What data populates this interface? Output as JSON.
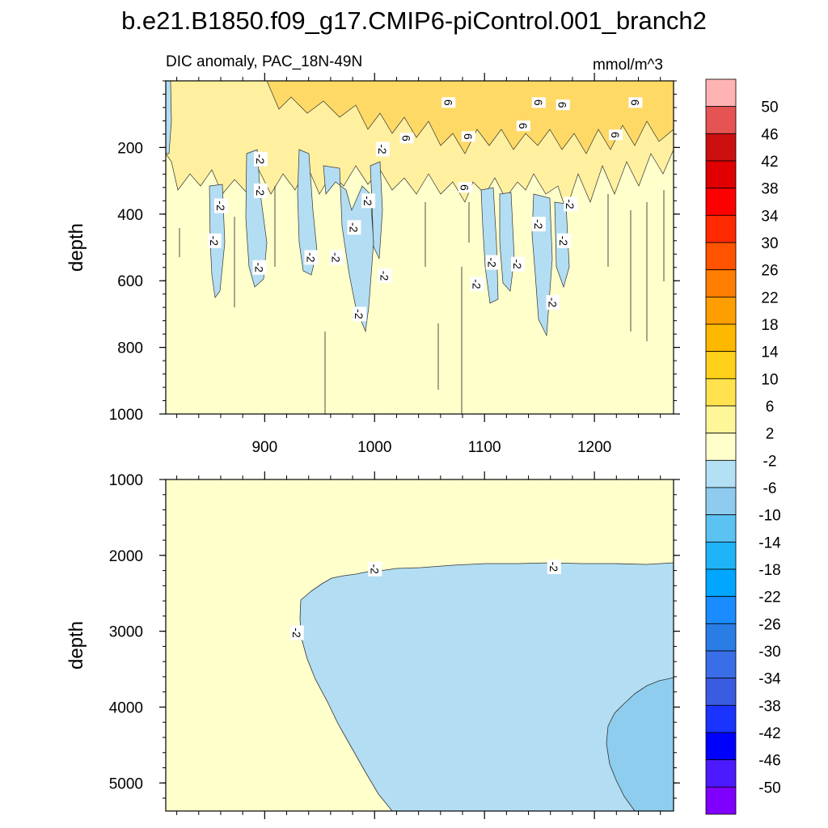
{
  "figure": {
    "title": "b.e21.B1850.f09_g17.CMIP6-piControl.001_branch2"
  },
  "chart_data": [
    {
      "type": "heatmap",
      "panel": "upper",
      "title": "DIC anomaly, PAC_18N-49N",
      "units": "mmol/m^3",
      "xlabel": "",
      "ylabel": "depth",
      "xlim": [
        810,
        1272
      ],
      "ylim": [
        1000,
        0
      ],
      "xticks": [
        900,
        1000,
        1100,
        1200
      ],
      "xtick_labels": [
        "900",
        "1000",
        "1100",
        "1200"
      ],
      "yticks": [
        200,
        400,
        600,
        800,
        1000
      ],
      "ytick_labels": [
        "200",
        "400",
        "600",
        "800",
        "1000"
      ],
      "contour_labels": [
        {
          "text": "6",
          "x": 1067,
          "y": 65
        },
        {
          "text": "6",
          "x": 1149,
          "y": 65
        },
        {
          "text": "6",
          "x": 1171,
          "y": 72
        },
        {
          "text": "6",
          "x": 1237,
          "y": 65
        },
        {
          "text": "6",
          "x": 1029,
          "y": 172
        },
        {
          "text": "6",
          "x": 1085,
          "y": 167
        },
        {
          "text": "6",
          "x": 1135,
          "y": 135
        },
        {
          "text": "6",
          "x": 1219,
          "y": 162
        },
        {
          "text": "6",
          "x": 1082,
          "y": 320
        },
        {
          "text": "-2",
          "x": 1007,
          "y": 205
        },
        {
          "text": "-2",
          "x": 896,
          "y": 235
        },
        {
          "text": "-2",
          "x": 896,
          "y": 330
        },
        {
          "text": "-2",
          "x": 860,
          "y": 375
        },
        {
          "text": "-2",
          "x": 854,
          "y": 480
        },
        {
          "text": "-2",
          "x": 895,
          "y": 560
        },
        {
          "text": "-2",
          "x": 942,
          "y": 530
        },
        {
          "text": "-2",
          "x": 965,
          "y": 530
        },
        {
          "text": "-2",
          "x": 994,
          "y": 360
        },
        {
          "text": "-2",
          "x": 981,
          "y": 440
        },
        {
          "text": "-2",
          "x": 1009,
          "y": 585
        },
        {
          "text": "-2",
          "x": 986,
          "y": 700
        },
        {
          "text": "-2",
          "x": 1178,
          "y": 370
        },
        {
          "text": "-2",
          "x": 1149,
          "y": 430
        },
        {
          "text": "-2",
          "x": 1172,
          "y": 480
        },
        {
          "text": "-2",
          "x": 1107,
          "y": 545
        },
        {
          "text": "-2",
          "x": 1130,
          "y": 550
        },
        {
          "text": "-2",
          "x": 1093,
          "y": 610
        },
        {
          "text": "-2",
          "x": 1162,
          "y": 665
        }
      ]
    },
    {
      "type": "heatmap",
      "panel": "lower",
      "title": "",
      "xlabel": "",
      "ylabel": "depth",
      "xlim": [
        810,
        1272
      ],
      "ylim": [
        5370,
        1000
      ],
      "yticks": [
        1000,
        2000,
        3000,
        4000,
        5000
      ],
      "ytick_labels": [
        "1000",
        "2000",
        "3000",
        "4000",
        "5000"
      ],
      "contour_labels": [
        {
          "text": "-2",
          "x": 1000,
          "y": 2180
        },
        {
          "text": "-2",
          "x": 1163,
          "y": 2150
        },
        {
          "text": "-2",
          "x": 929,
          "y": 3020
        }
      ]
    }
  ],
  "colorbar": {
    "levels": [
      "50",
      "46",
      "42",
      "38",
      "34",
      "30",
      "26",
      "22",
      "18",
      "14",
      "10",
      "6",
      "2",
      "-2",
      "-6",
      "-10",
      "-14",
      "-18",
      "-22",
      "-26",
      "-30",
      "-34",
      "-38",
      "-42",
      "-46",
      "-50"
    ],
    "colors": [
      "#ffb3b3",
      "#e65353",
      "#cc1010",
      "#e00000",
      "#ff0000",
      "#ff2a00",
      "#ff5300",
      "#ff7d00",
      "#ff9e00",
      "#ffb800",
      "#ffd11a",
      "#ffe24d",
      "#fff599",
      "#ffffcc",
      "#b3e0f5",
      "#8fcbef",
      "#5cc2f2",
      "#1fb3f7",
      "#00a6ff",
      "#1a8cff",
      "#2b7de6",
      "#3a6ee6",
      "#3a5ce0",
      "#1a33ff",
      "#0000ff",
      "#4d1aff",
      "#8000ff"
    ],
    "label_positions": [
      "between"
    ]
  },
  "palette": {
    "pale_yellow": "#ffffcc",
    "light_blue": "#b3ddf2",
    "mid_blue": "#8ecdee",
    "gold_dark": "#ffd966",
    "gold_light": "#fff0a0"
  }
}
